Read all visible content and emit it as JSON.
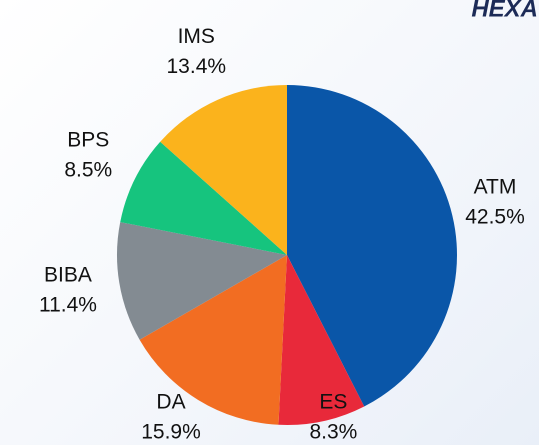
{
  "chart_data": {
    "type": "pie",
    "title": "HEXA",
    "categories": [
      "ATM",
      "ES",
      "DA",
      "BIBA",
      "BPS",
      "IMS"
    ],
    "values": [
      42.5,
      8.3,
      15.9,
      11.4,
      8.5,
      13.4
    ],
    "value_labels": [
      "42.5%",
      "8.3%",
      "15.9%",
      "11.4%",
      "8.5%",
      "13.4%"
    ],
    "colors": [
      "#0a56a8",
      "#e8293a",
      "#f26d22",
      "#838b92",
      "#16c47e",
      "#fbb31c"
    ]
  }
}
